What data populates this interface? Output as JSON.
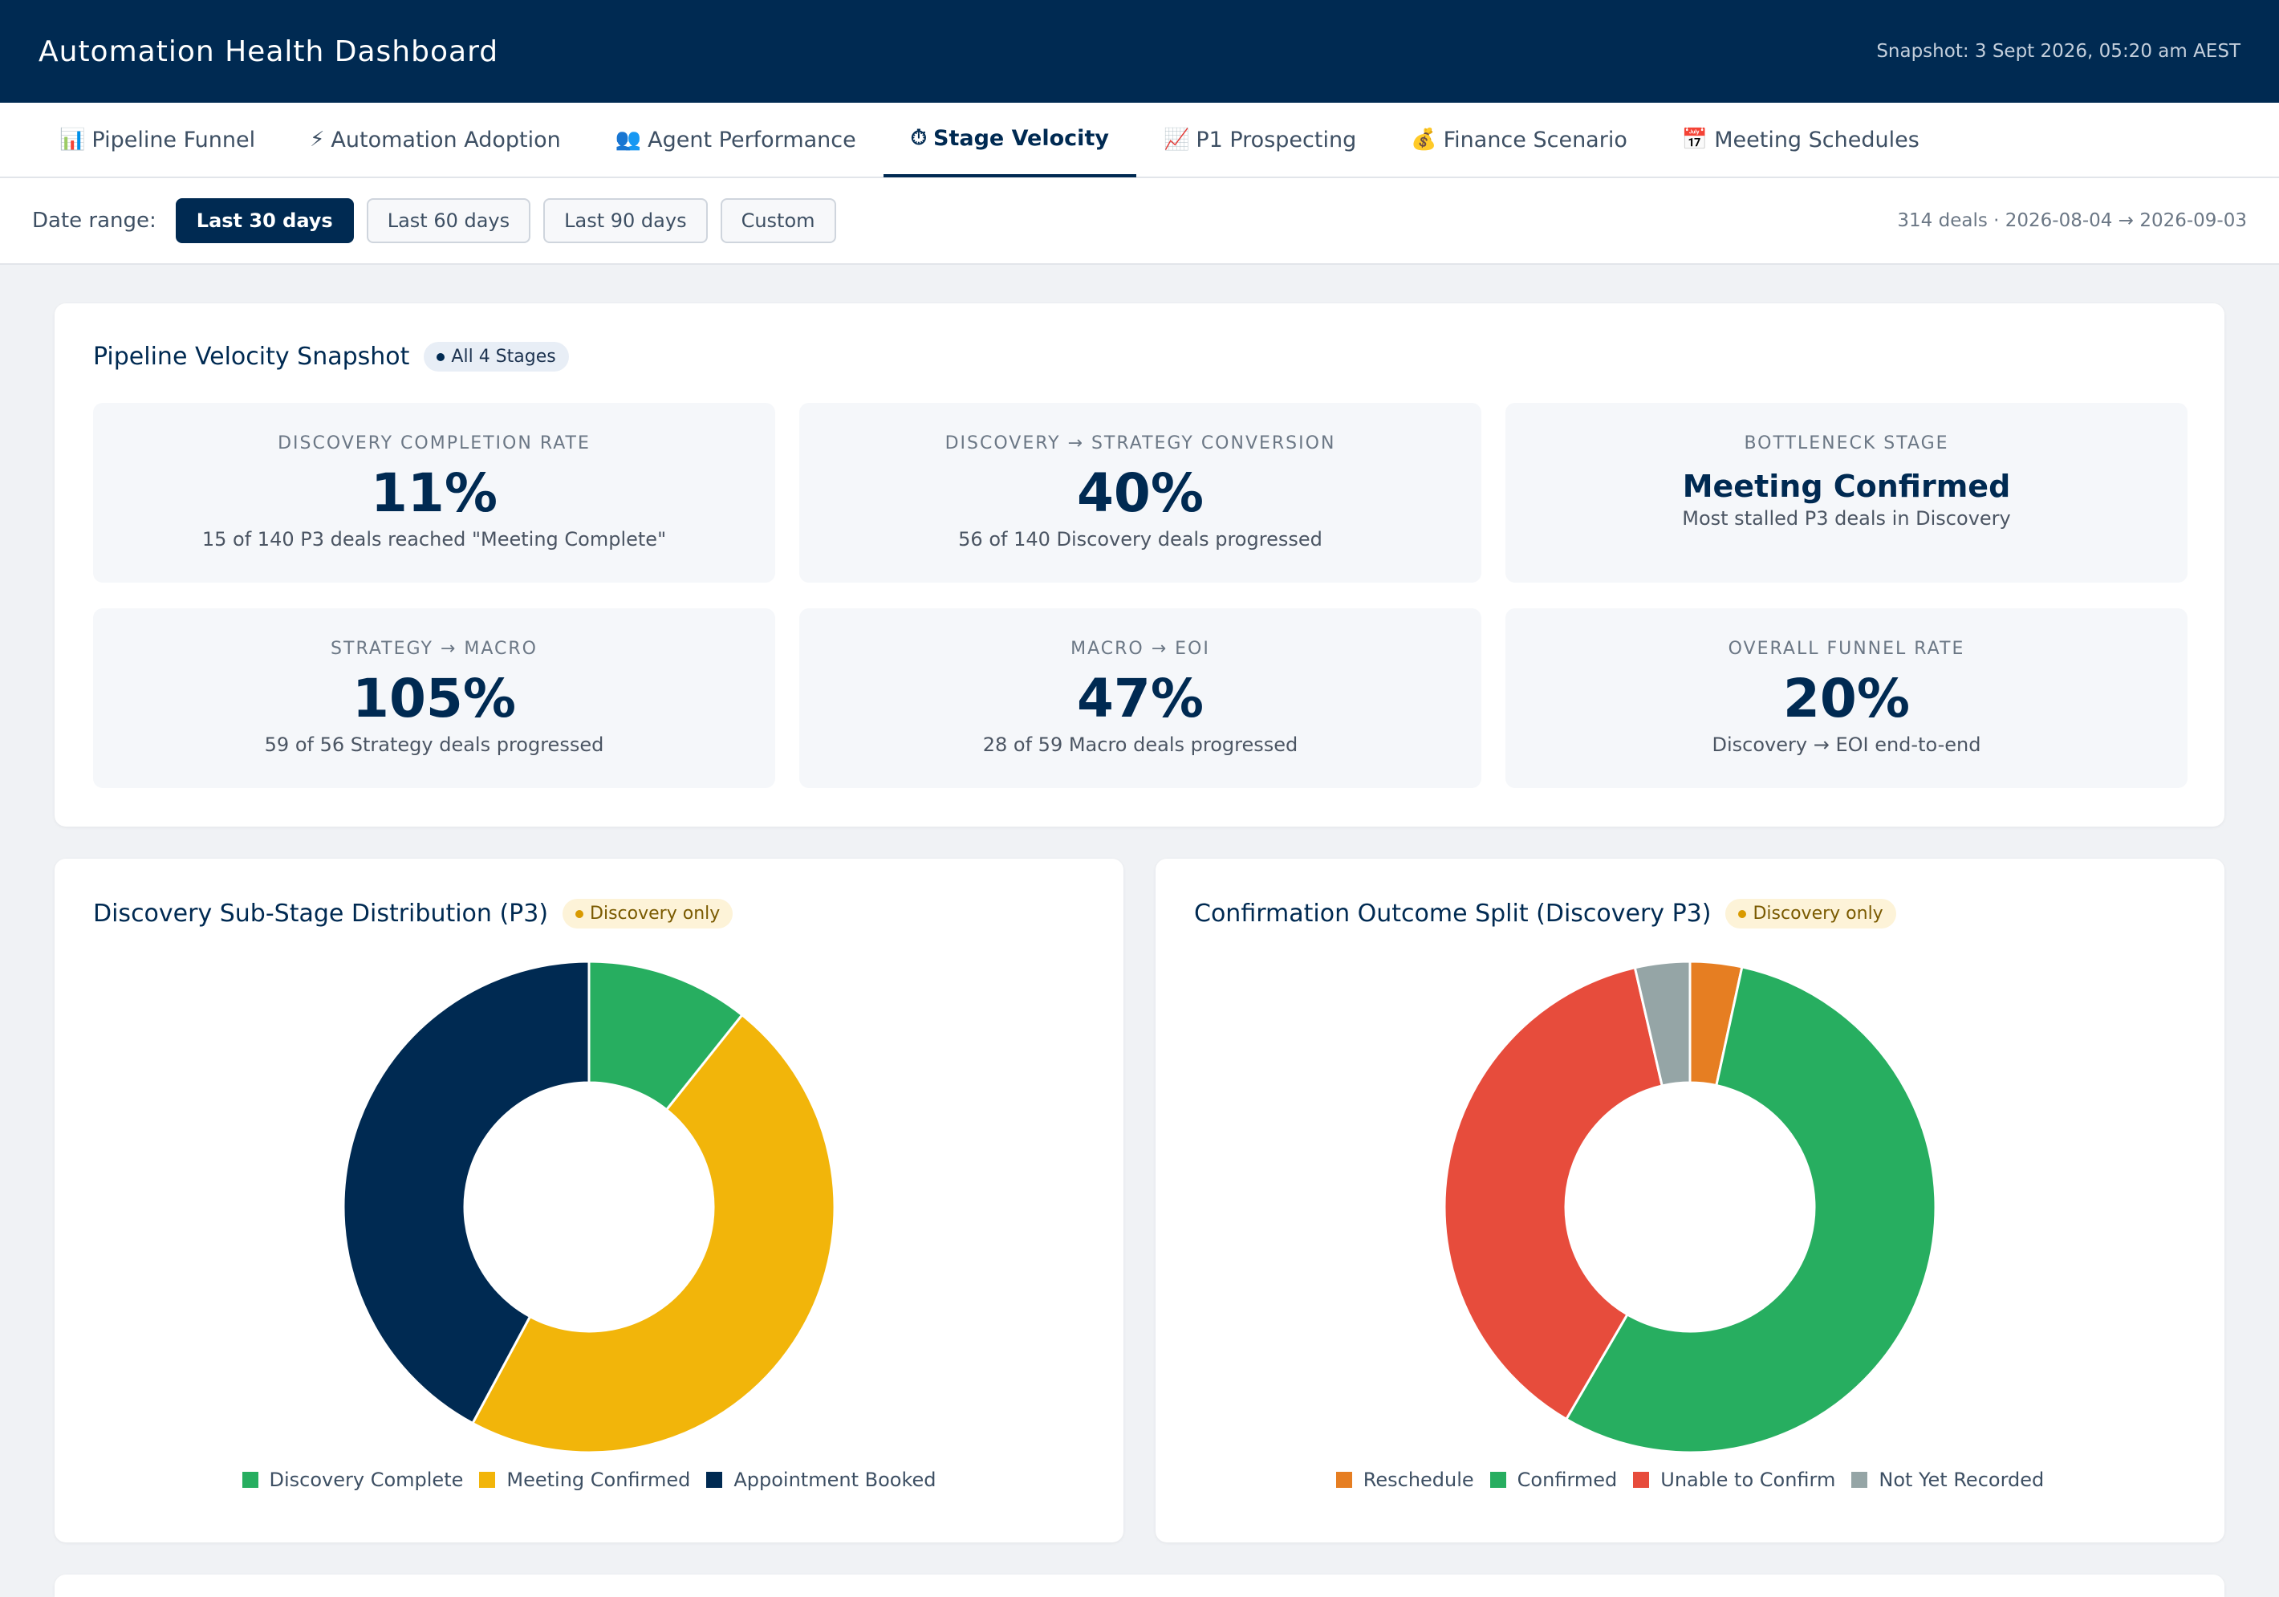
{
  "header": {
    "title": "Automation Health Dashboard",
    "snapshot": "Snapshot: 3 Sept 2026, 05:20 am AEST"
  },
  "tabs": [
    {
      "icon": "📊",
      "icon_name": "bar-chart-icon",
      "label": "Pipeline Funnel",
      "active": false
    },
    {
      "icon": "⚡",
      "icon_name": "lightning-icon",
      "label": "Automation Adoption",
      "active": false
    },
    {
      "icon": "👥",
      "icon_name": "people-icon",
      "label": "Agent Performance",
      "active": false
    },
    {
      "icon": "⏱",
      "icon_name": "stopwatch-icon",
      "label": "Stage Velocity",
      "active": true
    },
    {
      "icon": "📈",
      "icon_name": "trend-up-icon",
      "label": "P1 Prospecting",
      "active": false
    },
    {
      "icon": "💰",
      "icon_name": "money-bag-icon",
      "label": "Finance Scenario",
      "active": false
    },
    {
      "icon": "📅",
      "icon_name": "calendar-icon",
      "label": "Meeting Schedules",
      "active": false
    }
  ],
  "filter": {
    "label": "Date range:",
    "options": [
      {
        "label": "Last 30 days",
        "active": true
      },
      {
        "label": "Last 60 days",
        "active": false
      },
      {
        "label": "Last 90 days",
        "active": false
      },
      {
        "label": "Custom",
        "active": false
      }
    ],
    "meta": "314 deals · 2026-08-04 → 2026-09-03"
  },
  "snapshot_card": {
    "title": "Pipeline Velocity Snapshot",
    "badge": "All 4 Stages",
    "kpis": [
      {
        "label": "DISCOVERY COMPLETION RATE",
        "value": "11%",
        "sub": "15 of 140 P3 deals reached \"Meeting Complete\""
      },
      {
        "label": "DISCOVERY → STRATEGY CONVERSION",
        "value": "40%",
        "sub": "56 of 140 Discovery deals progressed"
      },
      {
        "label": "BOTTLENECK STAGE",
        "value": "Meeting Confirmed",
        "sub": "Most stalled P3 deals in Discovery"
      },
      {
        "label": "STRATEGY → MACRO",
        "value": "105%",
        "sub": "59 of 56 Strategy deals progressed"
      },
      {
        "label": "MACRO → EOI",
        "value": "47%",
        "sub": "28 of 59 Macro deals progressed"
      },
      {
        "label": "OVERALL FUNNEL RATE",
        "value": "20%",
        "sub": "Discovery → EOI end-to-end"
      }
    ]
  },
  "charts": {
    "left": {
      "title": "Discovery Sub-Stage Distribution (P3)",
      "badge": "Discovery only"
    },
    "right": {
      "title": "Confirmation Outcome Split (Discovery P3)",
      "badge": "Discovery only"
    }
  },
  "chart_data": [
    {
      "type": "pie",
      "donut": true,
      "title": "Discovery Sub-Stage Distribution (P3)",
      "categories": [
        "Discovery Complete",
        "Meeting Confirmed",
        "Appointment Booked"
      ],
      "values": [
        15,
        66,
        59
      ],
      "colors": [
        "#27ae60",
        "#f2b50a",
        "#002a52"
      ],
      "start_angle_deg": 0,
      "legend": "bottom"
    },
    {
      "type": "pie",
      "donut": true,
      "title": "Confirmation Outcome Split (Discovery P3)",
      "categories": [
        "Reschedule",
        "Confirmed",
        "Unable to Confirm",
        "Not Yet Recorded"
      ],
      "values": [
        3.4,
        55,
        38,
        3.6
      ],
      "colors": [
        "#e67e22",
        "#27ae60",
        "#e74c3c",
        "#95a5a6"
      ],
      "start_angle_deg": 0,
      "legend": "bottom"
    }
  ]
}
